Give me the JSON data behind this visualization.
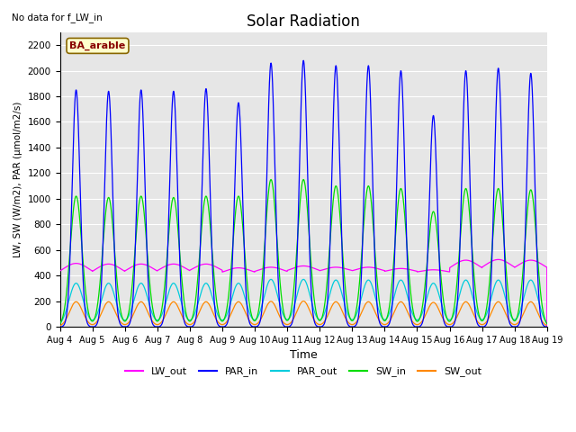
{
  "title": "Solar Radiation",
  "note": "No data for f_LW_in",
  "legend_label": "BA_arable",
  "xlabel": "Time",
  "ylabel": "LW, SW (W/m2), PAR (μmol/m2/s)",
  "ylim": [
    0,
    2300
  ],
  "yticks": [
    0,
    200,
    400,
    600,
    800,
    1000,
    1200,
    1400,
    1600,
    1800,
    2000,
    2200
  ],
  "xtick_labels": [
    "Aug 4",
    "Aug 5",
    "Aug 6",
    "Aug 7",
    "Aug 8",
    "Aug 9",
    "Aug 10",
    "Aug 11",
    "Aug 12",
    "Aug 13",
    "Aug 14",
    "Aug 15",
    "Aug 16",
    "Aug 17",
    "Aug 18",
    "Aug 19"
  ],
  "colors": {
    "LW_out": "#ff00ff",
    "PAR_in": "#0000ff",
    "PAR_out": "#00ccdd",
    "SW_in": "#00dd00",
    "SW_out": "#ff8800"
  },
  "background_color": "#e6e6e6",
  "n_days": 15,
  "PAR_in_peaks": [
    1850,
    1840,
    1850,
    1840,
    1860,
    1750,
    2060,
    2080,
    2040,
    2040,
    2000,
    1650,
    2000,
    2020,
    1980
  ],
  "SW_in_peaks": [
    1020,
    1010,
    1020,
    1010,
    1020,
    1020,
    1150,
    1150,
    1100,
    1100,
    1080,
    900,
    1080,
    1080,
    1070
  ],
  "PAR_out_peaks": [
    340,
    340,
    340,
    340,
    340,
    340,
    370,
    370,
    365,
    365,
    365,
    340,
    365,
    365,
    365
  ],
  "SW_out_peaks": [
    195,
    195,
    195,
    195,
    195,
    195,
    198,
    200,
    195,
    195,
    195,
    190,
    195,
    195,
    195
  ],
  "LW_out_base": [
    385,
    385,
    390,
    395,
    400,
    400,
    405,
    410,
    415,
    415,
    415,
    415,
    410,
    415,
    415
  ],
  "LW_out_day_bump": [
    110,
    105,
    100,
    95,
    90,
    60,
    60,
    65,
    50,
    50,
    40,
    30,
    110,
    110,
    105
  ]
}
